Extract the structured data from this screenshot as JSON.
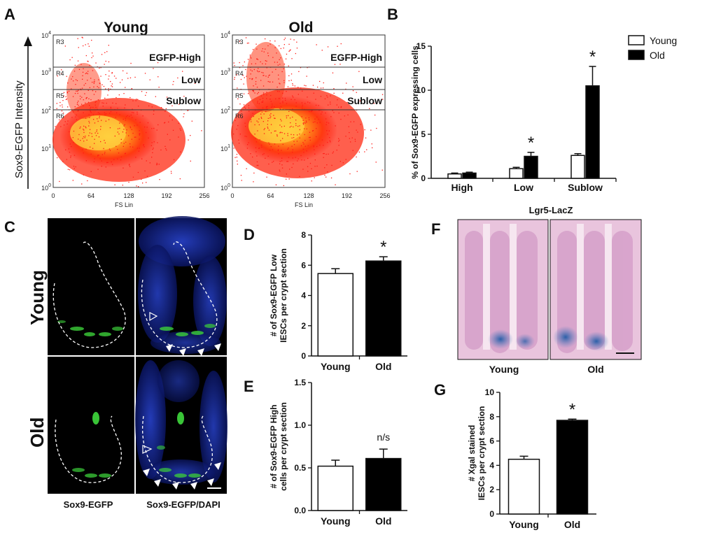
{
  "panels": {
    "A": "A",
    "B": "B",
    "C": "C",
    "D": "D",
    "E": "E",
    "F": "F",
    "G": "G"
  },
  "flow": {
    "y_axis_label": "Sox9-EGFP Intensity",
    "x_axis_label": "FS Lin",
    "x_ticks": [
      "0",
      "64",
      "128",
      "192",
      "256"
    ],
    "y_ticks": [
      {
        "base": "10",
        "exp": "4"
      },
      {
        "base": "10",
        "exp": "3"
      },
      {
        "base": "10",
        "exp": "2"
      },
      {
        "base": "10",
        "exp": "1"
      },
      {
        "base": "10",
        "exp": "0"
      }
    ],
    "regions": [
      "R3",
      "R4",
      "R5",
      "R6"
    ],
    "gates": [
      "EGFP-High",
      "Low",
      "Sublow"
    ],
    "plots": [
      {
        "title": "Young"
      },
      {
        "title": "Old"
      }
    ]
  },
  "panelC": {
    "row_labels": [
      "Young",
      "Old"
    ],
    "captions": [
      "Sox9-EGFP",
      "Sox9-EGFP/DAPI"
    ]
  },
  "panelF": {
    "title": "Lgr5-LacZ",
    "captions": [
      "Young",
      "Old"
    ]
  },
  "chart_data": [
    {
      "id": "B",
      "type": "bar",
      "title": "",
      "xlabel": "",
      "ylabel": "% of Sox9-EGFP expressing cells",
      "categories": [
        "High",
        "Low",
        "Sublow"
      ],
      "ylim": [
        0,
        15
      ],
      "yticks": [
        "0",
        "5",
        "10",
        "15"
      ],
      "series": [
        {
          "name": "Young",
          "color": "#ffffff",
          "values": [
            0.5,
            1.1,
            2.6
          ],
          "errors": [
            0.1,
            0.15,
            0.2
          ]
        },
        {
          "name": "Old",
          "color": "#000000",
          "values": [
            0.6,
            2.5,
            10.5
          ],
          "errors": [
            0.1,
            0.45,
            2.2
          ]
        }
      ],
      "annotations": [
        "",
        "*",
        "*"
      ],
      "legend": "top-right"
    },
    {
      "id": "D",
      "type": "bar",
      "title": "",
      "ylabel": "# of Sox9-EGFP Low IESCs per crypt section",
      "categories": [
        "Young",
        "Old"
      ],
      "values": [
        5.45,
        6.28
      ],
      "errors": [
        0.32,
        0.28
      ],
      "colors": [
        "#ffffff",
        "#000000"
      ],
      "ylim": [
        0,
        8
      ],
      "yticks": [
        "0",
        "2",
        "4",
        "6",
        "8"
      ],
      "annotation": "*"
    },
    {
      "id": "E",
      "type": "bar",
      "title": "",
      "ylabel": "# of Sox9-EGFP High cells per crypt section",
      "categories": [
        "Young",
        "Old"
      ],
      "values": [
        0.52,
        0.61
      ],
      "errors": [
        0.07,
        0.11
      ],
      "colors": [
        "#ffffff",
        "#000000"
      ],
      "ylim": [
        0,
        1.5
      ],
      "yticks": [
        "0.0",
        "0.5",
        "1.0",
        "1.5"
      ],
      "annotation": "n/s"
    },
    {
      "id": "G",
      "type": "bar",
      "title": "",
      "ylabel": "# Xgal stained IESCs per crypt section",
      "categories": [
        "Young",
        "Old"
      ],
      "values": [
        4.5,
        7.7
      ],
      "errors": [
        0.25,
        0.1
      ],
      "colors": [
        "#ffffff",
        "#000000"
      ],
      "ylim": [
        0,
        10
      ],
      "yticks": [
        "0",
        "2",
        "4",
        "6",
        "8",
        "10"
      ],
      "annotation": "*"
    }
  ]
}
